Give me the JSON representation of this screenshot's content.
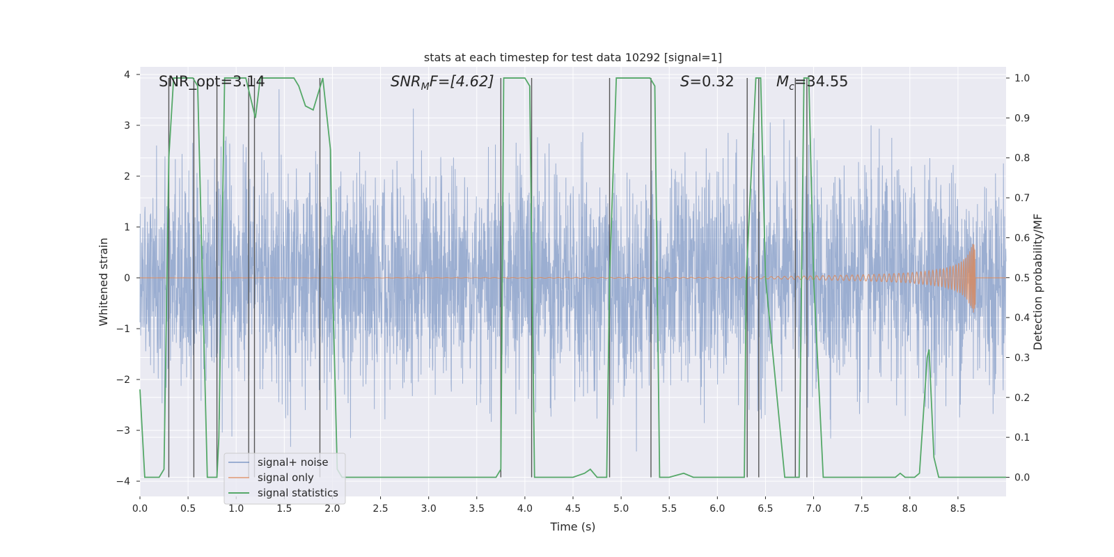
{
  "chart_data": {
    "type": "line",
    "title": "stats at each timestep for test data 10292 [signal=1]",
    "xlabel": "Time (s)",
    "ylabel_left": "Whitened strain",
    "ylabel_right": "Detection probability/MF",
    "xlim": [
      0,
      9
    ],
    "ylim_left": [
      -4.3,
      4.15
    ],
    "ylim_right": [
      -0.048,
      1.028
    ],
    "x_ticks": [
      "0.0",
      "0.5",
      "1.0",
      "1.5",
      "2.0",
      "2.5",
      "3.0",
      "3.5",
      "4.0",
      "4.5",
      "5.0",
      "5.5",
      "6.0",
      "6.5",
      "7.0",
      "7.5",
      "8.0",
      "8.5"
    ],
    "x_tick_values": [
      0,
      0.5,
      1,
      1.5,
      2,
      2.5,
      3,
      3.5,
      4,
      4.5,
      5,
      5.5,
      6,
      6.5,
      7,
      7.5,
      8,
      8.5
    ],
    "y_left_ticks": [
      "−4",
      "−3",
      "−2",
      "−1",
      "0",
      "1",
      "2",
      "3",
      "4"
    ],
    "y_left_tick_values": [
      -4,
      -3,
      -2,
      -1,
      0,
      1,
      2,
      3,
      4
    ],
    "y_right_ticks": [
      "0.0",
      "0.1",
      "0.2",
      "0.3",
      "0.4",
      "0.5",
      "0.6",
      "0.7",
      "0.8",
      "0.9",
      "1.0"
    ],
    "y_right_tick_values": [
      0,
      0.1,
      0.2,
      0.3,
      0.4,
      0.5,
      0.6,
      0.7,
      0.8,
      0.9,
      1.0
    ],
    "annotations": {
      "snr_opt": "SNR_opt=3.14",
      "snr_mf_sym": "SNR",
      "snr_mf_sub": "M",
      "snr_mf_rest": "F=[4.62]",
      "s_sym": "S",
      "s_rest": "=0.32",
      "mc_sym": "M",
      "mc_sub": "c",
      "mc_rest": "=34.55"
    },
    "legend": [
      "signal+ noise",
      "signal only",
      "signal statistics"
    ],
    "colors": {
      "noise": "#4c72b0",
      "signal": "#dd8452",
      "stats": "#55a868",
      "vline": "#555555",
      "plot_bg": "#eaeaf2",
      "grid": "#ffffff"
    },
    "noise_series": {
      "name": "signal+ noise",
      "y_range": [
        -3.6,
        3.9
      ],
      "typical_envelope": [
        -1.5,
        1.5
      ]
    },
    "signal_series": {
      "name": "signal only",
      "t": [
        0,
        6.0,
        6.5,
        7.0,
        7.5,
        7.8,
        8.0,
        8.2,
        8.35,
        8.45,
        8.52,
        8.58,
        8.62,
        8.65,
        8.67,
        8.68
      ],
      "amplitude": [
        0,
        0.01,
        0.02,
        0.04,
        0.06,
        0.08,
        0.1,
        0.14,
        0.18,
        0.24,
        0.3,
        0.4,
        0.52,
        0.65,
        0.75,
        0.8
      ]
    },
    "stats_series": {
      "name": "signal statistics",
      "x": [
        0,
        0.05,
        0.1,
        0.2,
        0.25,
        0.3,
        0.35,
        0.4,
        0.55,
        0.6,
        0.7,
        0.8,
        0.82,
        0.88,
        1.1,
        1.15,
        1.2,
        1.25,
        1.6,
        1.65,
        1.72,
        1.8,
        1.9,
        1.98,
        2.0,
        2.05,
        2.1,
        3.7,
        3.75,
        3.78,
        4.0,
        4.05,
        4.1,
        4.5,
        4.62,
        4.68,
        4.75,
        4.85,
        4.88,
        4.95,
        5.3,
        5.35,
        5.4,
        5.5,
        5.65,
        5.75,
        6.0,
        6.28,
        6.3,
        6.4,
        6.45,
        6.5,
        6.7,
        6.85,
        6.9,
        6.95,
        7.0,
        7.1,
        7.15,
        7.5,
        7.85,
        7.9,
        7.95,
        8.05,
        8.1,
        8.18,
        8.2,
        8.25,
        8.3,
        8.6,
        9.0
      ],
      "y": [
        0.22,
        0.0,
        0.0,
        0.0,
        0.02,
        0.8,
        1.0,
        1.0,
        1.0,
        0.98,
        0.0,
        0.0,
        0.1,
        1.0,
        1.0,
        0.95,
        0.9,
        1.0,
        1.0,
        0.98,
        0.93,
        0.92,
        1.0,
        0.82,
        0.5,
        0.02,
        0.0,
        0.0,
        0.02,
        1.0,
        1.0,
        0.98,
        0.0,
        0.0,
        0.01,
        0.02,
        0.0,
        0.0,
        0.5,
        1.0,
        1.0,
        0.98,
        0.0,
        0.0,
        0.01,
        0.0,
        0.0,
        0.0,
        0.5,
        1.0,
        1.0,
        0.5,
        0.0,
        0.0,
        1.0,
        1.0,
        0.5,
        0.0,
        0.0,
        0.0,
        0.0,
        0.01,
        0.0,
        0.0,
        0.01,
        0.3,
        0.32,
        0.05,
        0.0,
        0.0,
        0.0
      ]
    },
    "vertical_lines_x": [
      0.3,
      0.56,
      0.8,
      1.13,
      1.19,
      1.87,
      3.75,
      4.07,
      4.88,
      5.31,
      6.31,
      6.43,
      6.81,
      6.93
    ]
  }
}
